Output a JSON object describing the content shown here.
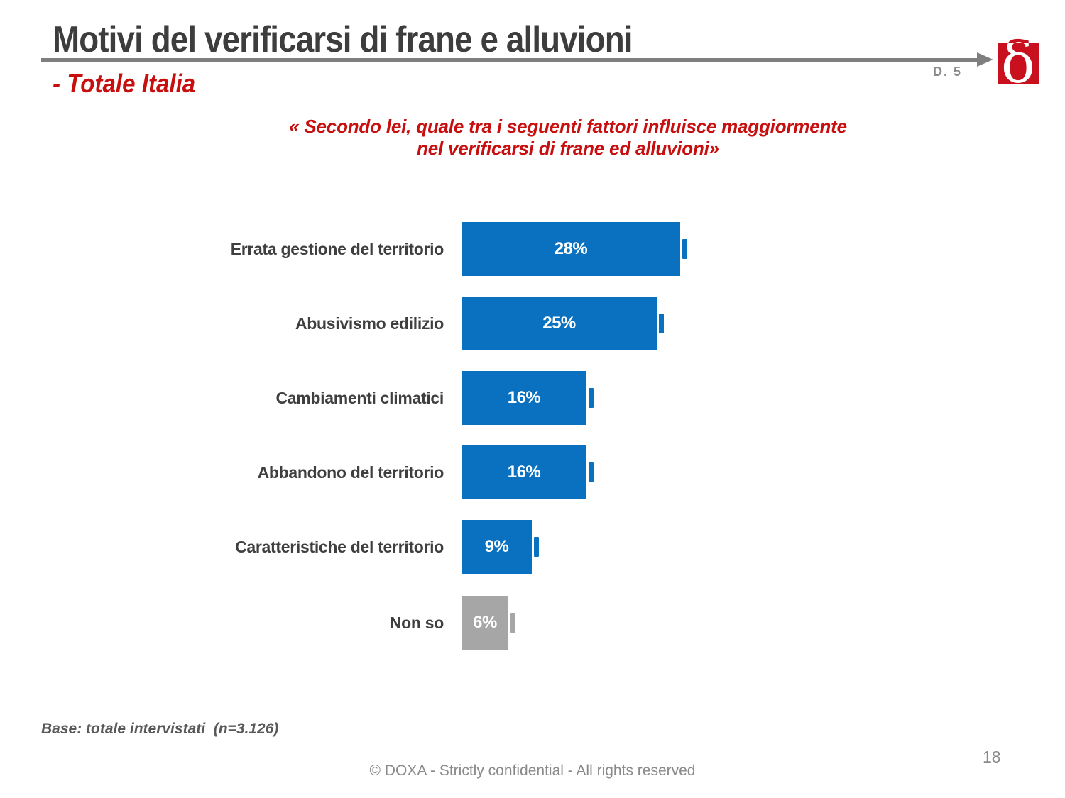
{
  "slide": {
    "title": "Motivi del verificarsi di frane e alluvioni",
    "subtitle": "- Totale Italia",
    "question_ref": "D. 5",
    "question_line1": "« Secondo lei, quale tra i seguenti fattori influisce maggiormente",
    "question_line2": "nel verificarsi di frane ed alluvioni»",
    "logo_glyph": "δ"
  },
  "chart_data": {
    "type": "bar",
    "orientation": "horizontal",
    "title": "Motivi del verificarsi di frane e alluvioni - Totale Italia",
    "categories": [
      "Errata gestione del territorio",
      "Abusivismo edilizio",
      "Cambiamenti climatici",
      "Abbandono del territorio",
      "Caratteristiche del territorio",
      "Non so"
    ],
    "values": [
      28,
      25,
      16,
      16,
      9,
      6
    ],
    "value_labels": [
      "28%",
      "25%",
      "16%",
      "16%",
      "9%",
      "6%"
    ],
    "unit": "%",
    "xlim": [
      0,
      30
    ],
    "gridlines": false,
    "legend": false,
    "value_label_position": "inside-center",
    "value_label_color": "#ffffff",
    "bar_colors": [
      "#0a71c0",
      "#0a71c0",
      "#0a71c0",
      "#0a71c0",
      "#0a71c0",
      "#a6a6a6"
    ],
    "category_label_color": "#3f3f3f"
  },
  "footer": {
    "base_note": "Base: totale intervistati  (n=3.126)",
    "confidential": "© DOXA - Strictly confidential - All rights reserved",
    "page_number": "18"
  },
  "colors": {
    "accent_red": "#c80f10",
    "logo_red": "#c8101e",
    "title_gray": "#3d3d3d",
    "rule_gray": "#7f7f7f",
    "footer_gray": "#8a8a8a",
    "note_gray": "#595959",
    "bar_blue": "#0a71c0",
    "bar_gray": "#a6a6a6"
  }
}
